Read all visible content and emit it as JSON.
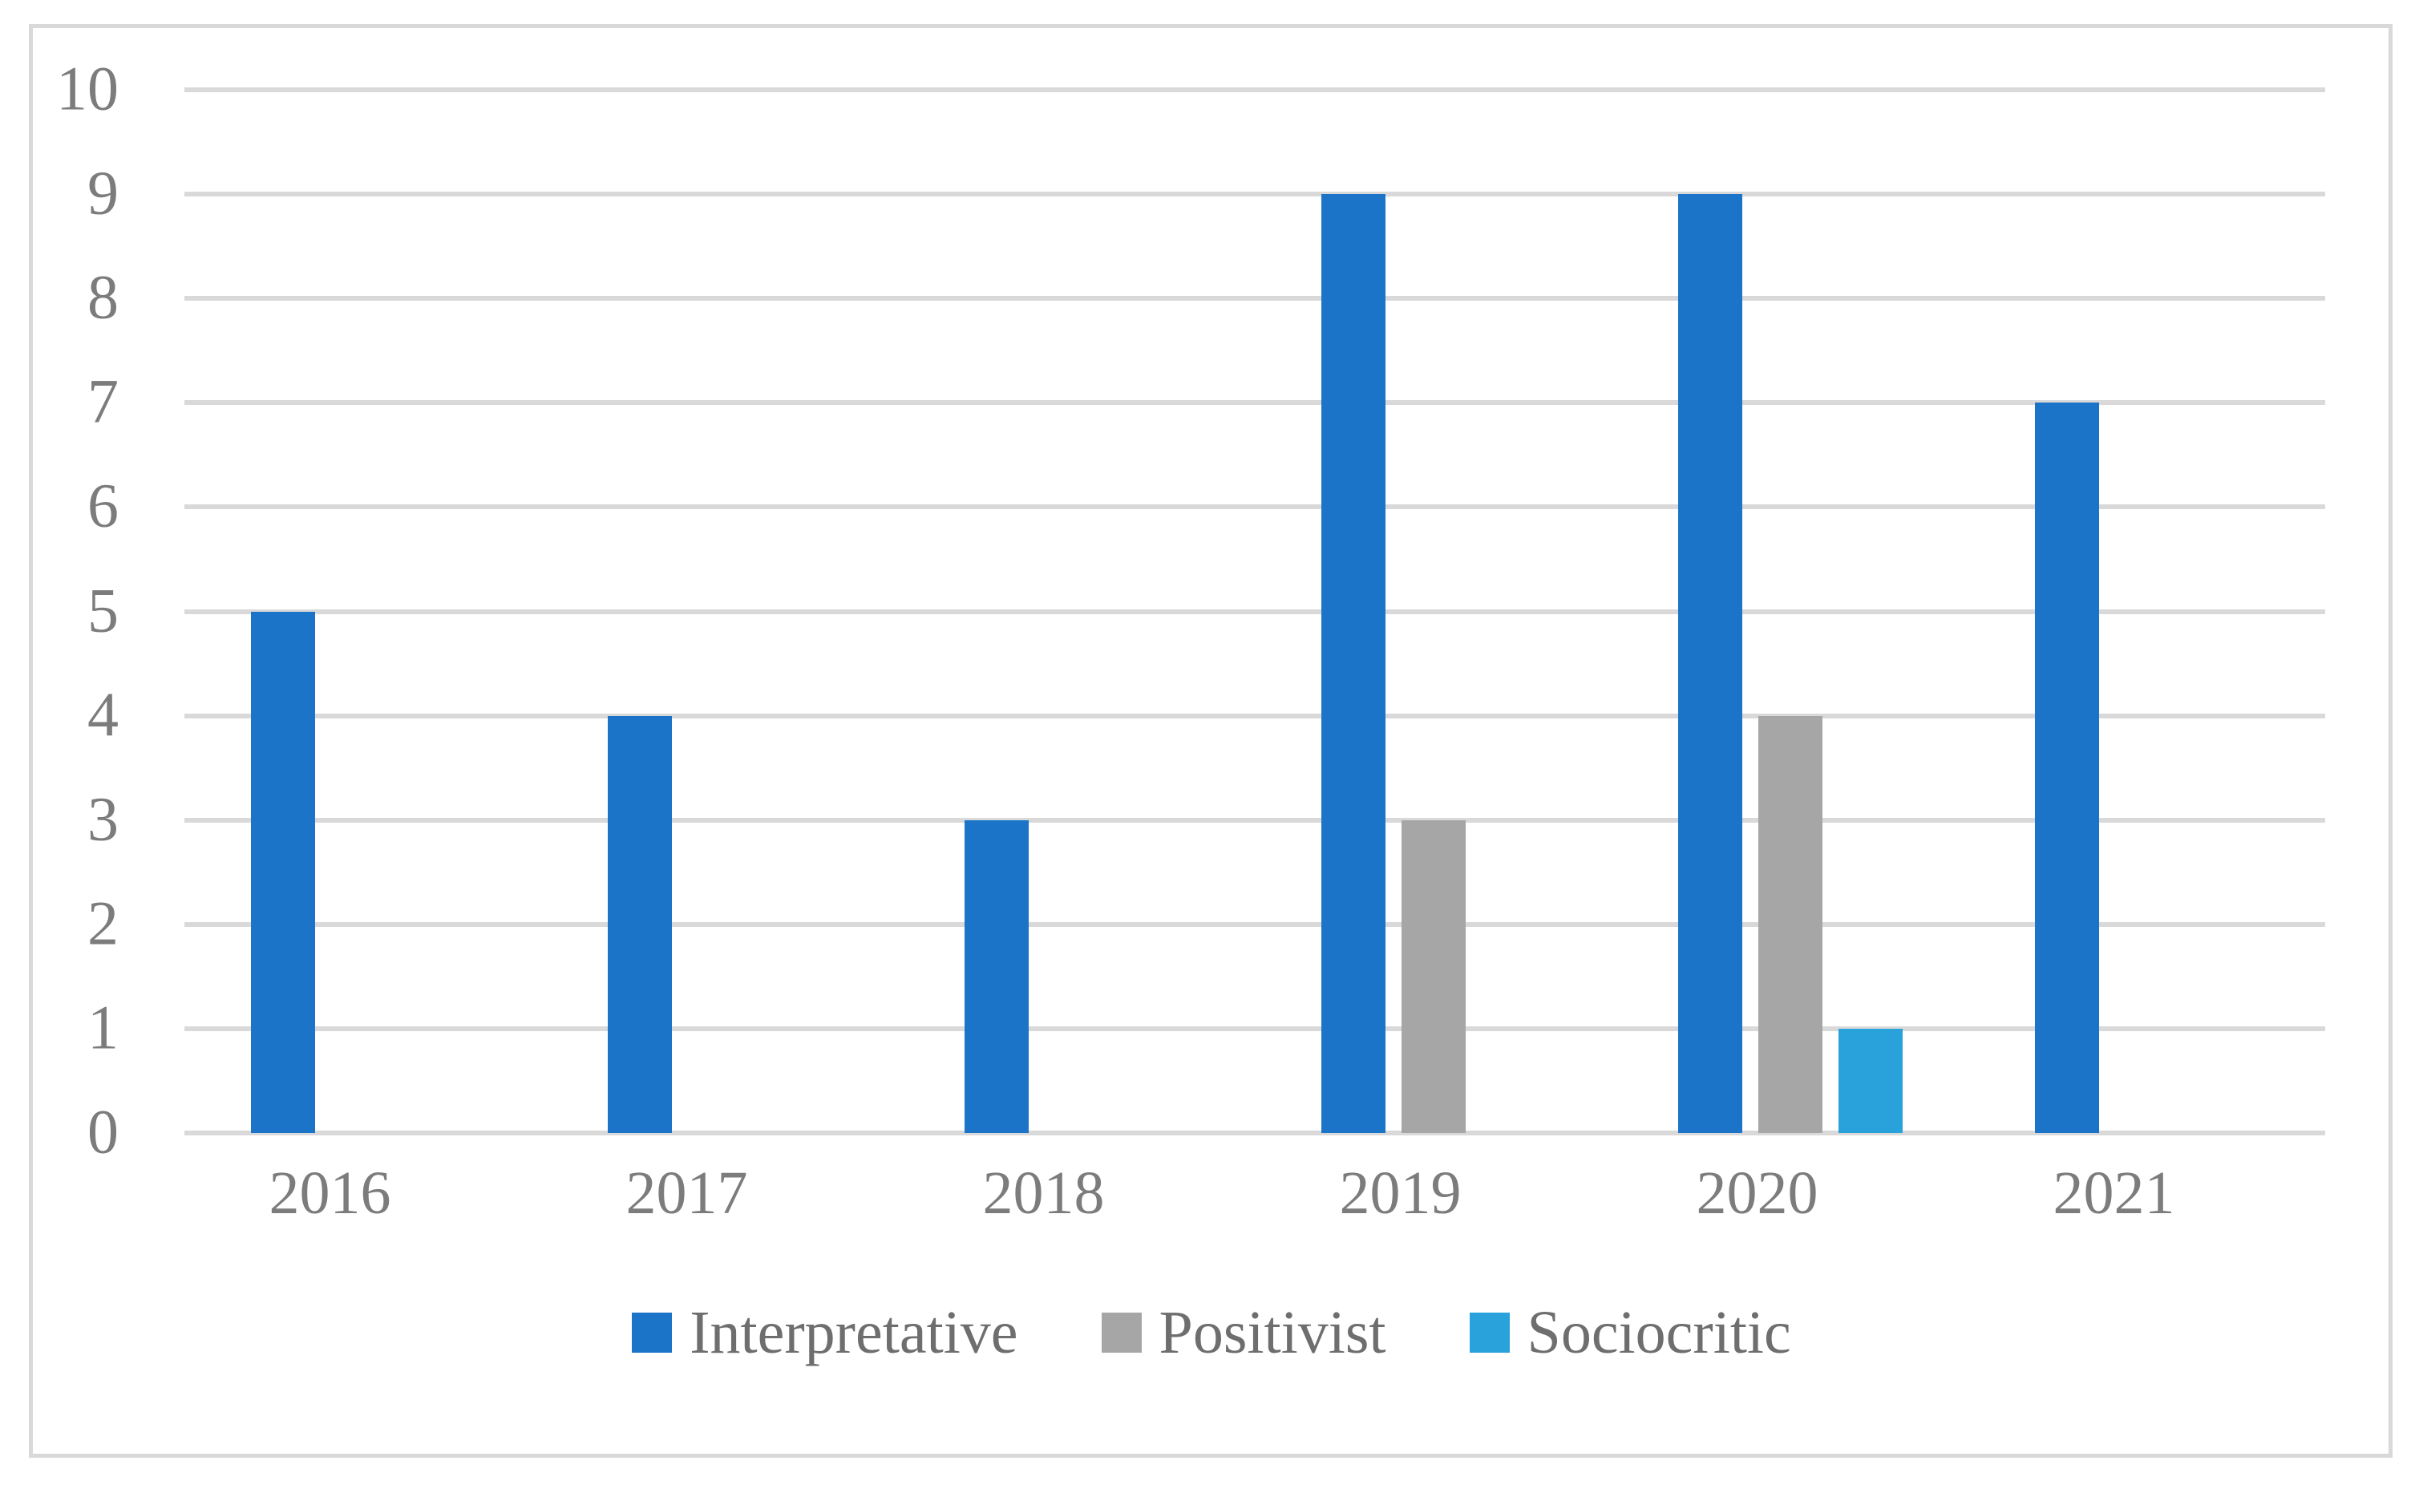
{
  "chart_data": {
    "type": "bar",
    "categories": [
      "2016",
      "2017",
      "2018",
      "2019",
      "2020",
      "2021"
    ],
    "series": [
      {
        "name": "Interpretative",
        "color": "#1B74C8",
        "values": [
          5,
          4,
          3,
          9,
          9,
          7
        ]
      },
      {
        "name": "Positivist",
        "color": "#A6A6A6",
        "values": [
          0,
          0,
          0,
          3,
          4,
          0
        ]
      },
      {
        "name": "Sociocritic",
        "color": "#29A1DB",
        "values": [
          0,
          0,
          0,
          0,
          1,
          0
        ]
      }
    ],
    "title": "",
    "xlabel": "",
    "ylabel": "",
    "ylim": [
      0,
      10
    ],
    "yticks": [
      0,
      1,
      2,
      3,
      4,
      5,
      6,
      7,
      8,
      9,
      10
    ],
    "grid": true,
    "legend_position": "bottom"
  },
  "style_colors": {
    "gridline": "#D9D9D9",
    "plot_border": "#D9D9D9",
    "axis_text": "#7C7C7C",
    "legend_text": "#6E6E6E"
  }
}
